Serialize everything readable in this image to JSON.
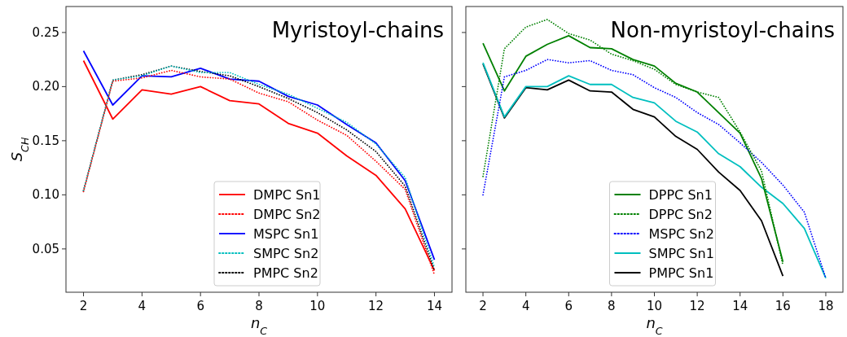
{
  "chart_data": [
    {
      "type": "line",
      "title": "Myristoyl-chains",
      "xlabel": "n$_{C}$",
      "ylabel": "S$_{CH}$",
      "x": [
        2,
        3,
        4,
        5,
        6,
        7,
        8,
        9,
        10,
        11,
        12,
        13,
        14
      ],
      "xlim": [
        1.4,
        14.6
      ],
      "xticks": [
        2,
        4,
        6,
        8,
        10,
        12,
        14
      ],
      "ylim": [
        0.01,
        0.274
      ],
      "yticks": [
        0.05,
        {
          "value": 0.1,
          "label": "0.10"
        },
        0.15,
        {
          "value": 0.2,
          "label": "0.20"
        },
        0.25
      ],
      "grid": false,
      "legend": "bottom",
      "marker": "none",
      "series": [
        {
          "name": "DMPC Sn1",
          "color": "#ff0000",
          "line_style": "solid",
          "values": [
            0.224,
            0.17,
            0.197,
            0.193,
            0.2,
            0.187,
            0.184,
            0.166,
            0.157,
            0.136,
            0.118,
            0.087,
            0.03
          ]
        },
        {
          "name": "DMPC Sn2",
          "color": "#ff0000",
          "line_style": "dotted",
          "values": [
            0.103,
            0.205,
            0.208,
            0.215,
            0.209,
            0.207,
            0.194,
            0.186,
            0.169,
            0.155,
            0.131,
            0.105,
            0.026
          ]
        },
        {
          "name": "MSPC Sn1",
          "color": "#0000ff",
          "line_style": "solid",
          "values": [
            0.233,
            0.183,
            0.21,
            0.209,
            0.217,
            0.207,
            0.205,
            0.191,
            0.183,
            0.165,
            0.148,
            0.113,
            0.04
          ]
        },
        {
          "name": "SMPC Sn2",
          "color": "#00bfbf",
          "line_style": "dotted",
          "values": [
            0.104,
            0.206,
            0.21,
            0.219,
            0.213,
            0.213,
            0.202,
            0.193,
            0.18,
            0.167,
            0.147,
            0.116,
            0.033
          ]
        },
        {
          "name": "PMPC Sn2",
          "color": "#000000",
          "line_style": "dotted",
          "values": [
            0.104,
            0.206,
            0.211,
            0.219,
            0.214,
            0.21,
            0.2,
            0.189,
            0.176,
            0.16,
            0.14,
            0.108,
            0.03
          ]
        }
      ]
    },
    {
      "type": "line",
      "title": "Non-myristoyl-chains",
      "xlabel": "n$_{C}$",
      "x": [
        2,
        3,
        4,
        5,
        6,
        7,
        8,
        9,
        10,
        11,
        12,
        13,
        14,
        15,
        16,
        17,
        18
      ],
      "xlim": [
        1.2,
        18.8
      ],
      "xticks": [
        2,
        4,
        6,
        8,
        10,
        12,
        14,
        16,
        18
      ],
      "ylim": [
        0.01,
        0.274
      ],
      "yticks": [
        0.05,
        0.1,
        0.15,
        0.2,
        0.25
      ],
      "tick_labels": "x",
      "grid": false,
      "legend": "bottom",
      "marker": "none",
      "series": [
        {
          "name": "DPPC Sn1",
          "color": "#008000",
          "line_style": "solid",
          "values": [
            0.24,
            0.196,
            0.228,
            0.239,
            0.247,
            0.236,
            0.235,
            0.225,
            0.219,
            0.203,
            0.195,
            0.176,
            0.157,
            0.115,
            0.038,
            null,
            null
          ]
        },
        {
          "name": "DPPC Sn2",
          "color": "#008000",
          "line_style": "dotted",
          "values": [
            0.117,
            0.235,
            0.255,
            0.262,
            0.249,
            0.243,
            0.23,
            0.224,
            0.216,
            0.202,
            0.195,
            0.19,
            0.158,
            0.122,
            0.035,
            null,
            null
          ]
        },
        {
          "name": "MSPC Sn2",
          "color": "#0000ff",
          "line_style": "dotted",
          "values": [
            0.1,
            0.209,
            0.215,
            0.225,
            0.222,
            0.224,
            0.215,
            0.211,
            0.199,
            0.19,
            0.176,
            0.165,
            0.148,
            0.13,
            0.109,
            0.084,
            0.023
          ]
        },
        {
          "name": "SMPC Sn1",
          "color": "#00bfbf",
          "line_style": "solid",
          "values": [
            0.222,
            0.172,
            0.2,
            0.2,
            0.21,
            0.202,
            0.202,
            0.19,
            0.185,
            0.168,
            0.158,
            0.138,
            0.126,
            0.107,
            0.092,
            0.069,
            0.023
          ]
        },
        {
          "name": "PMPC Sn1",
          "color": "#000000",
          "line_style": "solid",
          "values": [
            0.221,
            0.171,
            0.199,
            0.197,
            0.206,
            0.196,
            0.195,
            0.179,
            0.172,
            0.154,
            0.142,
            0.121,
            0.104,
            0.076,
            0.025,
            null,
            null
          ]
        }
      ]
    }
  ]
}
